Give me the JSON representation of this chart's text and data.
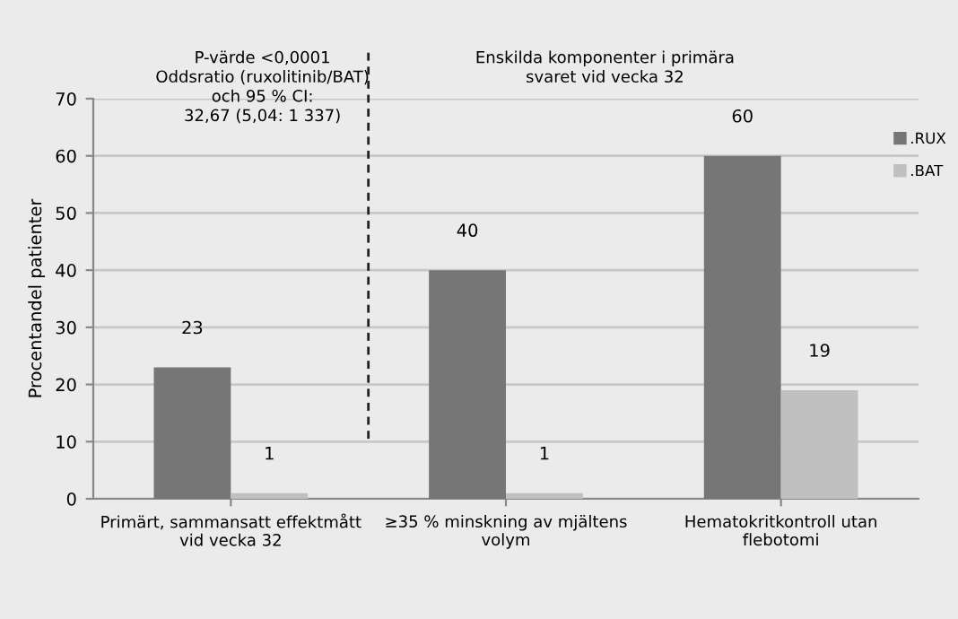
{
  "chart_data": {
    "type": "bar",
    "ylabel": "Procentandel patienter",
    "categories": [
      "Primärt, sammansatt effektmått\nvid vecka 32",
      "≥35 % minskning av mjältens\nvolym",
      "Hematokritkontroll utan\nflebotomi"
    ],
    "series": [
      {
        "name": ".RUX",
        "color": "#767676",
        "values": [
          23,
          40,
          60
        ]
      },
      {
        "name": ".BAT",
        "color": "#c0c0c0",
        "values": [
          1,
          1,
          19
        ]
      }
    ],
    "data_labels": true,
    "ylim": [
      0,
      70
    ],
    "yticks": [
      0,
      10,
      20,
      30,
      40,
      50,
      60,
      70
    ],
    "grid": "y",
    "legend": "right",
    "annotations": [
      "P-värde <0,0001\nOddsratio (ruxolitinib/BAT)\noch 95 % CI:\n32,67 (5,04: 1 337)",
      "Enskilda komponenter i primära\nsvaret vid vecka 32"
    ]
  }
}
